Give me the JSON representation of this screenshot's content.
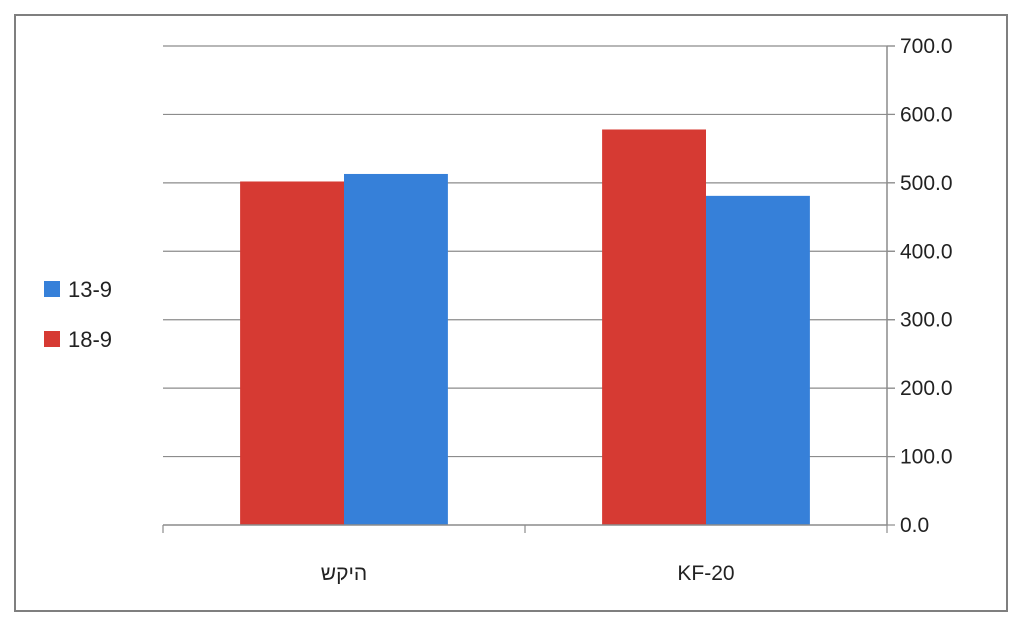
{
  "chart_data": {
    "type": "bar",
    "categories": [
      "היקש",
      "KF-20"
    ],
    "series": [
      {
        "name": "18-9",
        "color": "#d63a33",
        "values": [
          502,
          578
        ]
      },
      {
        "name": "13-9",
        "color": "#3680d9",
        "values": [
          513,
          481
        ]
      }
    ],
    "y_ticks": [
      "0.0",
      "100.0",
      "200.0",
      "300.0",
      "400.0",
      "500.0",
      "600.0",
      "700.0"
    ],
    "ylim": [
      0,
      700
    ],
    "y_axis_side": "right",
    "grid": true,
    "legend": {
      "placement": "left",
      "order": [
        "13-9",
        "18-9"
      ]
    },
    "title": "",
    "xlabel": "",
    "ylabel": ""
  }
}
